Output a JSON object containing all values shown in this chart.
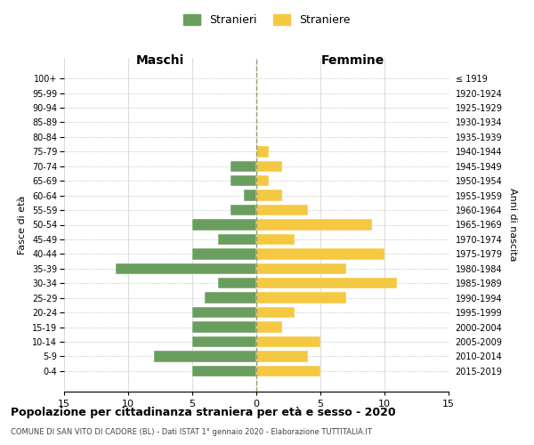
{
  "age_groups": [
    "100+",
    "95-99",
    "90-94",
    "85-89",
    "80-84",
    "75-79",
    "70-74",
    "65-69",
    "60-64",
    "55-59",
    "50-54",
    "45-49",
    "40-44",
    "35-39",
    "30-34",
    "25-29",
    "20-24",
    "15-19",
    "10-14",
    "5-9",
    "0-4"
  ],
  "birth_years": [
    "≤ 1919",
    "1920-1924",
    "1925-1929",
    "1930-1934",
    "1935-1939",
    "1940-1944",
    "1945-1949",
    "1950-1954",
    "1955-1959",
    "1960-1964",
    "1965-1969",
    "1970-1974",
    "1975-1979",
    "1980-1984",
    "1985-1989",
    "1990-1994",
    "1995-1999",
    "2000-2004",
    "2005-2009",
    "2010-2014",
    "2015-2019"
  ],
  "maschi": [
    0,
    0,
    0,
    0,
    0,
    0,
    2,
    2,
    1,
    2,
    5,
    3,
    5,
    11,
    3,
    4,
    5,
    5,
    5,
    8,
    5
  ],
  "femmine": [
    0,
    0,
    0,
    0,
    0,
    1,
    2,
    1,
    2,
    4,
    9,
    3,
    10,
    7,
    11,
    7,
    3,
    2,
    5,
    4,
    5
  ],
  "color_maschi": "#6a9e5e",
  "color_femmine": "#f5c842",
  "title": "Popolazione per cittadinanza straniera per età e sesso - 2020",
  "subtitle": "COMUNE DI SAN VITO DI CADORE (BL) - Dati ISTAT 1° gennaio 2020 - Elaborazione TUTTITALIA.IT",
  "label_maschi": "Stranieri",
  "label_femmine": "Straniere",
  "xlabel_left": "Maschi",
  "xlabel_right": "Femmine",
  "ylabel_left": "Fasce di età",
  "ylabel_right": "Anni di nascita",
  "xlim": 15,
  "background_color": "#ffffff",
  "grid_color": "#cccccc",
  "grid_color_y": "#bbbbbb",
  "dashed_line_color": "#999966"
}
